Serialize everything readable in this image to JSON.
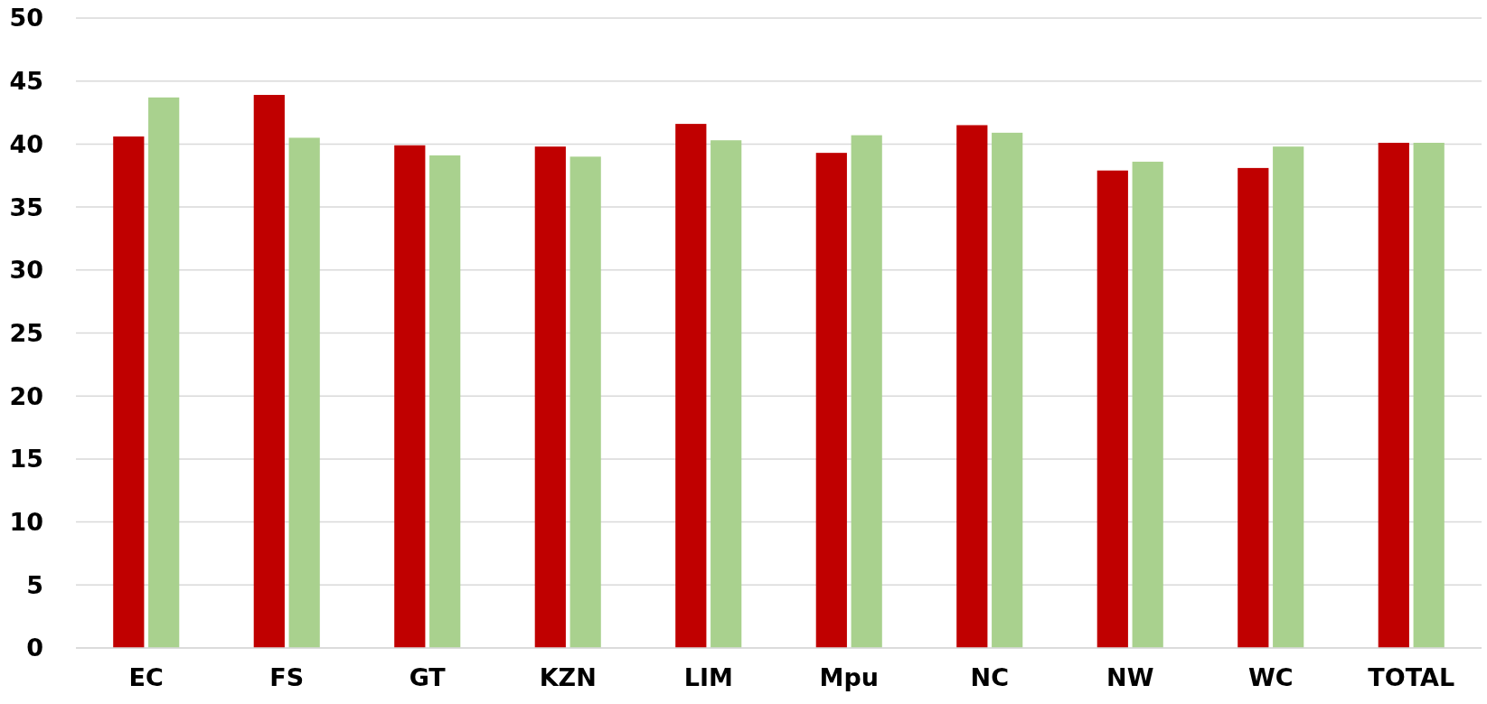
{
  "chart_data": {
    "type": "bar",
    "categories": [
      "EC",
      "FS",
      "GT",
      "KZN",
      "LIM",
      "Mpu",
      "NC",
      "NW",
      "WC",
      "TOTAL"
    ],
    "series": [
      {
        "color": "#c00000",
        "values": [
          40.6,
          43.9,
          39.9,
          39.8,
          41.6,
          39.3,
          41.5,
          37.9,
          38.1,
          40.1
        ]
      },
      {
        "color": "#a9d18e",
        "values": [
          43.7,
          40.5,
          39.1,
          39.0,
          40.3,
          40.7,
          40.9,
          38.6,
          39.8,
          40.1
        ]
      }
    ],
    "ylim": [
      0,
      50
    ],
    "yticks": [
      0,
      5,
      10,
      15,
      20,
      25,
      30,
      35,
      40,
      45,
      50
    ],
    "grid": "y"
  }
}
